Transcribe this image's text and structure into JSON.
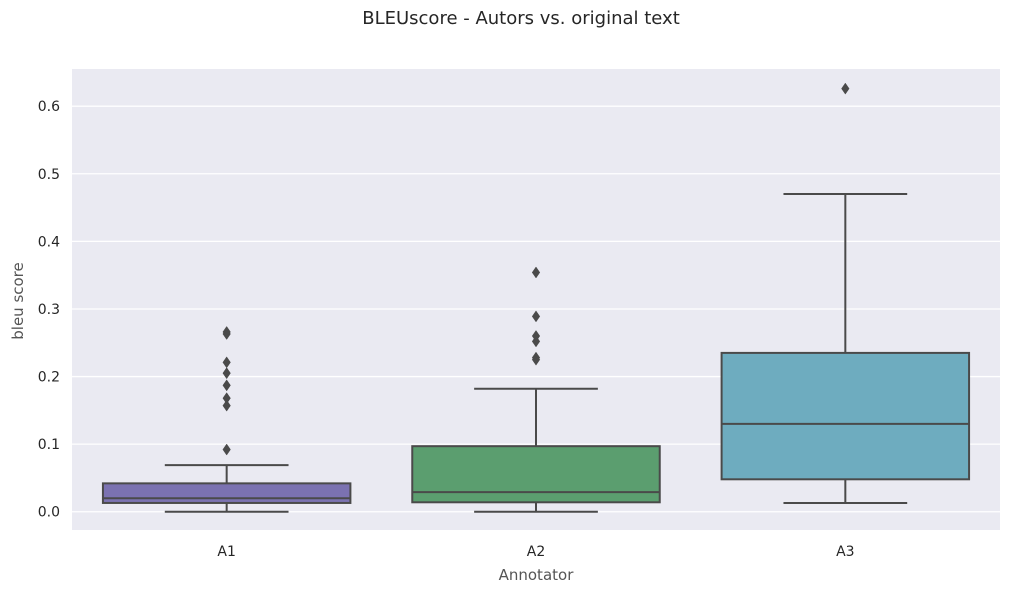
{
  "chart_data": {
    "type": "box",
    "title": "BLEUscore - Autors vs. original text",
    "xlabel": "Annotator",
    "ylabel": "bleu score",
    "ylim": [
      -0.027,
      0.655
    ],
    "yticks": [
      0.0,
      0.1,
      0.2,
      0.3,
      0.4,
      0.5,
      0.6
    ],
    "ytick_labels": [
      "0.0",
      "0.1",
      "0.2",
      "0.3",
      "0.4",
      "0.5",
      "0.6"
    ],
    "grid": true,
    "style": {
      "background": "#eaeaf2",
      "grid_color": "#ffffff",
      "line_color": "#4a4a4a"
    },
    "categories": [
      "A1",
      "A2",
      "A3"
    ],
    "boxes": [
      {
        "label": "A1",
        "color": "#7b72b1",
        "whisker_low": 0.0,
        "q1": 0.013,
        "median": 0.02,
        "q3": 0.042,
        "whisker_high": 0.069,
        "outliers": [
          0.092,
          0.157,
          0.168,
          0.187,
          0.205,
          0.221,
          0.263,
          0.266
        ]
      },
      {
        "label": "A2",
        "color": "#5b9e6f",
        "whisker_low": 0.0,
        "q1": 0.014,
        "median": 0.029,
        "q3": 0.097,
        "whisker_high": 0.182,
        "outliers": [
          0.225,
          0.228,
          0.252,
          0.26,
          0.289,
          0.354
        ]
      },
      {
        "label": "A3",
        "color": "#6eacbf",
        "whisker_low": 0.013,
        "q1": 0.048,
        "median": 0.13,
        "q3": 0.235,
        "whisker_high": 0.47,
        "outliers": [
          0.626
        ]
      }
    ]
  }
}
